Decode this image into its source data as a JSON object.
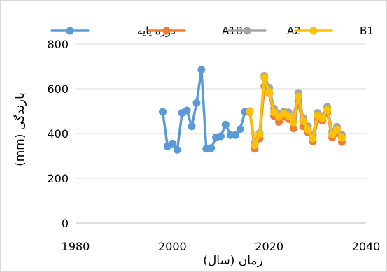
{
  "chart_data": {
    "type": "line",
    "title": "",
    "xlabel": "زمان (سال)",
    "ylabel": "بارندگی (mm)",
    "xlim": [
      1980,
      2040
    ],
    "ylim": [
      0,
      800
    ],
    "x_ticks": [
      "1980",
      "2000",
      "2020",
      "2040"
    ],
    "y_ticks": [
      "0",
      "200",
      "400",
      "600",
      "800"
    ],
    "grid": "horizontal",
    "legend_position": "top",
    "series": [
      {
        "name": "دوره پایه",
        "color": "#5b9bd5",
        "x": [
          1998,
          1999,
          2000,
          2001,
          2002,
          2003,
          2004,
          2005,
          2006,
          2007,
          2008,
          2009,
          2010,
          2011,
          2012,
          2013,
          2014,
          2015
        ],
        "y": [
          497,
          343,
          355,
          327,
          492,
          503,
          432,
          537,
          685,
          332,
          335,
          382,
          388,
          440,
          393,
          393,
          420,
          497
        ]
      },
      {
        "name": "A1B",
        "color": "#ed7d31",
        "x": [
          2016,
          2017,
          2018,
          2019,
          2020,
          2021,
          2022,
          2023,
          2024,
          2025,
          2026,
          2027,
          2028,
          2029,
          2030,
          2031,
          2032,
          2033,
          2034,
          2035
        ],
        "y": [
          495,
          332,
          378,
          612,
          580,
          478,
          452,
          475,
          465,
          423,
          545,
          432,
          405,
          365,
          462,
          458,
          492,
          382,
          402,
          362
        ]
      },
      {
        "name": "A2",
        "color": "#a5a5a5",
        "x": [
          2016,
          2017,
          2018,
          2019,
          2020,
          2021,
          2022,
          2023,
          2024,
          2025,
          2026,
          2027,
          2028,
          2029,
          2030,
          2031,
          2032,
          2033,
          2034,
          2035
        ],
        "y": [
          500,
          358,
          402,
          658,
          605,
          512,
          490,
          498,
          495,
          470,
          582,
          470,
          432,
          392,
          492,
          478,
          520,
          408,
          430,
          395
        ]
      },
      {
        "name": "B1",
        "color": "#ffc000",
        "x": [
          2016,
          2017,
          2018,
          2019,
          2020,
          2021,
          2022,
          2023,
          2024,
          2025,
          2026,
          2027,
          2028,
          2029,
          2030,
          2031,
          2032,
          2033,
          2034,
          2035
        ],
        "y": [
          498,
          348,
          395,
          650,
          585,
          495,
          475,
          488,
          478,
          450,
          565,
          455,
          418,
          378,
          480,
          468,
          505,
          395,
          418,
          380
        ]
      }
    ]
  }
}
